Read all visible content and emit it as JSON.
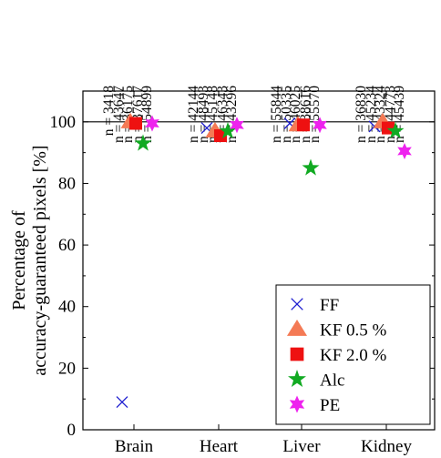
{
  "chart_data": {
    "type": "scatter",
    "title": "",
    "xlabel": "",
    "ylabel": "Percentage of\naccuracy-guaranteed pixels [%]",
    "categories": [
      "Brain",
      "Heart",
      "Liver",
      "Kidney"
    ],
    "ylim": [
      0,
      110
    ],
    "yticks": [
      0,
      20,
      40,
      60,
      80,
      100
    ],
    "reference_line": 100,
    "grid": false,
    "legend_position": "bottom-right",
    "series": [
      {
        "name": "FF",
        "marker": "x-icon",
        "color": "#1f1fd0",
        "values": [
          9,
          98,
          99.5,
          98.5
        ]
      },
      {
        "name": "KF 0.5 %",
        "marker": "triangle-icon",
        "color": "#f47a55",
        "values": [
          100,
          97,
          99,
          100
        ]
      },
      {
        "name": "KF 2.0 %",
        "marker": "square-icon",
        "color": "#ee1111",
        "values": [
          99.5,
          95.5,
          99,
          98
        ]
      },
      {
        "name": "Alc",
        "marker": "star-icon",
        "color": "#11aa22",
        "values": [
          93,
          97,
          85,
          97
        ]
      },
      {
        "name": "PE",
        "marker": "hexstar-icon",
        "color": "#ee22ee",
        "values": [
          99.5,
          99,
          99,
          90.5
        ]
      }
    ],
    "sample_counts": [
      [
        "n = 3418",
        "n = 43647",
        "n = 36175",
        "n = 37617",
        "n = 54899"
      ],
      [
        "n = 42144",
        "n = 48493",
        "n = 45148",
        "n = 46343",
        "n = 43296"
      ],
      [
        "n = 55844",
        "n = 50335",
        "n = 46025",
        "n = 38616",
        "n = 55570"
      ],
      [
        "n = 36830",
        "n = 45234",
        "n = 43324",
        "n = 44773",
        "n = 45439"
      ]
    ]
  }
}
